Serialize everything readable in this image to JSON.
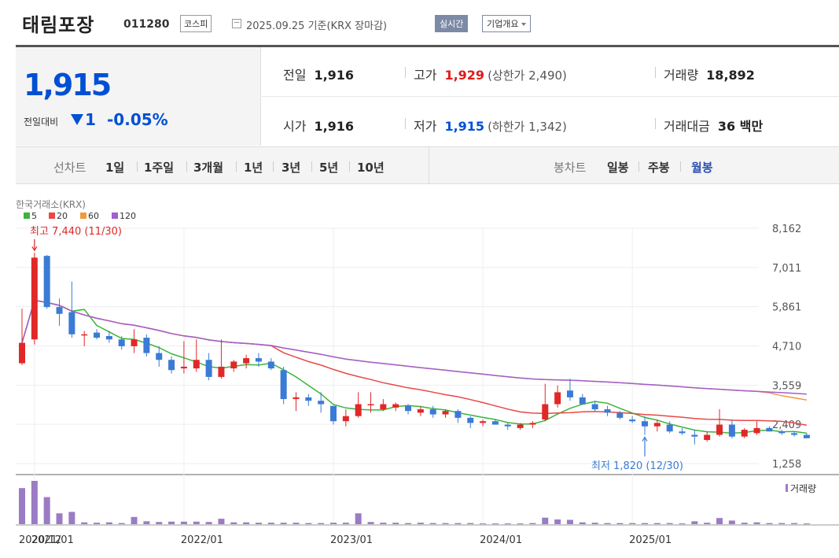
{
  "header": {
    "company_name": "태림포장",
    "stock_code": "011280",
    "market": "코스피",
    "as_of": "2025.09.25 기준(KRX 장마감)",
    "realtime_btn": "실시간",
    "overview_btn": "기업개요"
  },
  "price": {
    "current": "1,915",
    "change_label": "전일대비",
    "change_value": "1",
    "change_pct": "-0.05%",
    "direction": "down"
  },
  "stats": {
    "prev_close_label": "전일",
    "prev_close": "1,916",
    "open_label": "시가",
    "open": "1,916",
    "high_label": "고가",
    "high": "1,929",
    "upper_limit": "(상한가 2,490)",
    "low_label": "저가",
    "low": "1,915",
    "lower_limit": "(하한가 1,342)",
    "volume_label": "거래량",
    "volume": "18,892",
    "amount_label": "거래대금",
    "amount": "36 백만"
  },
  "tabs": {
    "line_chart_label": "선차트",
    "periods": [
      "1일",
      "1주일",
      "3개월",
      "1년",
      "3년",
      "5년",
      "10년"
    ],
    "candle_label": "봉차트",
    "candle_periods": [
      "일봉",
      "주봉",
      "월봉"
    ],
    "selected_candle": "월봉"
  },
  "chart_data": {
    "type": "candlestick",
    "source": "한국거래소(KRX)",
    "legend": [
      {
        "name": "5",
        "color": "#3cb43c"
      },
      {
        "name": "20",
        "color": "#e84848"
      },
      {
        "name": "60",
        "color": "#f29a3a"
      },
      {
        "name": "120",
        "color": "#a060d0"
      }
    ],
    "y_ticks": [
      "8,162",
      "7,011",
      "5,861",
      "4,710",
      "3,559",
      "2,409",
      "1,258"
    ],
    "y_tick_values": [
      8162,
      7011,
      5861,
      4710,
      3559,
      2409,
      1258
    ],
    "x_ticks": [
      "2020/12",
      "2021/01",
      "2022/01",
      "2023/01",
      "2024/01",
      "2025/01"
    ],
    "x_tick_index": [
      0,
      1,
      13,
      25,
      37,
      49
    ],
    "high_annotation": "최고 7,440 (11/30)",
    "high_index": 1,
    "low_annotation": "최저 1,820 (12/30)",
    "low_index": 50,
    "volume_label": "거래량",
    "colors": {
      "up": "#e02828",
      "down": "#3a7bd5",
      "volume": "#9b7cc4"
    },
    "candles": [
      {
        "o": 4200,
        "h": 5800,
        "l": 4150,
        "c": 4800,
        "v": 100
      },
      {
        "o": 4900,
        "h": 7440,
        "l": 4750,
        "c": 7300,
        "v": 120
      },
      {
        "o": 7350,
        "h": 7380,
        "l": 5800,
        "c": 5850,
        "v": 75
      },
      {
        "o": 5850,
        "h": 6100,
        "l": 5300,
        "c": 5650,
        "v": 30
      },
      {
        "o": 5700,
        "h": 6600,
        "l": 4950,
        "c": 5050,
        "v": 34
      },
      {
        "o": 5050,
        "h": 5150,
        "l": 4700,
        "c": 5050,
        "v": 5
      },
      {
        "o": 5100,
        "h": 5200,
        "l": 4900,
        "c": 4950,
        "v": 4
      },
      {
        "o": 5000,
        "h": 5150,
        "l": 4800,
        "c": 4900,
        "v": 5
      },
      {
        "o": 4900,
        "h": 5000,
        "l": 4600,
        "c": 4700,
        "v": 3
      },
      {
        "o": 4700,
        "h": 5200,
        "l": 4500,
        "c": 4900,
        "v": 20
      },
      {
        "o": 4950,
        "h": 5050,
        "l": 4400,
        "c": 4500,
        "v": 8
      },
      {
        "o": 4500,
        "h": 4700,
        "l": 4100,
        "c": 4300,
        "v": 6
      },
      {
        "o": 4300,
        "h": 4400,
        "l": 3900,
        "c": 4000,
        "v": 7
      },
      {
        "o": 4050,
        "h": 4850,
        "l": 3900,
        "c": 4100,
        "v": 7
      },
      {
        "o": 4050,
        "h": 4900,
        "l": 3950,
        "c": 4300,
        "v": 7
      },
      {
        "o": 4300,
        "h": 4500,
        "l": 3700,
        "c": 3800,
        "v": 6
      },
      {
        "o": 3800,
        "h": 4900,
        "l": 3750,
        "c": 4100,
        "v": 15
      },
      {
        "o": 4050,
        "h": 4300,
        "l": 3950,
        "c": 4250,
        "v": 5
      },
      {
        "o": 4200,
        "h": 4450,
        "l": 4050,
        "c": 4350,
        "v": 5
      },
      {
        "o": 4350,
        "h": 4500,
        "l": 4100,
        "c": 4250,
        "v": 4
      },
      {
        "o": 4250,
        "h": 4350,
        "l": 4000,
        "c": 4050,
        "v": 4
      },
      {
        "o": 4000,
        "h": 4100,
        "l": 3000,
        "c": 3150,
        "v": 4
      },
      {
        "o": 3150,
        "h": 3350,
        "l": 2800,
        "c": 3200,
        "v": 4
      },
      {
        "o": 3200,
        "h": 3300,
        "l": 2950,
        "c": 3100,
        "v": 3
      },
      {
        "o": 3100,
        "h": 3350,
        "l": 2750,
        "c": 3000,
        "v": 3
      },
      {
        "o": 2950,
        "h": 2950,
        "l": 2400,
        "c": 2500,
        "v": 4
      },
      {
        "o": 2500,
        "h": 2850,
        "l": 2350,
        "c": 2650,
        "v": 4
      },
      {
        "o": 2650,
        "h": 3350,
        "l": 2600,
        "c": 3000,
        "v": 30
      },
      {
        "o": 3000,
        "h": 3350,
        "l": 2750,
        "c": 3000,
        "v": 6
      },
      {
        "o": 2850,
        "h": 3150,
        "l": 2800,
        "c": 3000,
        "v": 4
      },
      {
        "o": 2900,
        "h": 3050,
        "l": 2800,
        "c": 3000,
        "v": 4
      },
      {
        "o": 2950,
        "h": 3000,
        "l": 2700,
        "c": 2800,
        "v": 3
      },
      {
        "o": 2750,
        "h": 2950,
        "l": 2650,
        "c": 2850,
        "v": 4
      },
      {
        "o": 2850,
        "h": 2950,
        "l": 2600,
        "c": 2700,
        "v": 3
      },
      {
        "o": 2700,
        "h": 2850,
        "l": 2600,
        "c": 2800,
        "v": 3
      },
      {
        "o": 2800,
        "h": 2850,
        "l": 2450,
        "c": 2600,
        "v": 3
      },
      {
        "o": 2600,
        "h": 2650,
        "l": 2300,
        "c": 2450,
        "v": 3
      },
      {
        "o": 2450,
        "h": 2550,
        "l": 2350,
        "c": 2500,
        "v": 2
      },
      {
        "o": 2500,
        "h": 2550,
        "l": 2400,
        "c": 2400,
        "v": 2
      },
      {
        "o": 2400,
        "h": 2450,
        "l": 2250,
        "c": 2350,
        "v": 2
      },
      {
        "o": 2300,
        "h": 2450,
        "l": 2250,
        "c": 2400,
        "v": 2
      },
      {
        "o": 2400,
        "h": 2500,
        "l": 2300,
        "c": 2450,
        "v": 3
      },
      {
        "o": 2550,
        "h": 3600,
        "l": 2500,
        "c": 3000,
        "v": 18
      },
      {
        "o": 3000,
        "h": 3550,
        "l": 2900,
        "c": 3350,
        "v": 13
      },
      {
        "o": 3400,
        "h": 3750,
        "l": 3100,
        "c": 3200,
        "v": 12
      },
      {
        "o": 3200,
        "h": 3300,
        "l": 3000,
        "c": 3000,
        "v": 5
      },
      {
        "o": 3000,
        "h": 3100,
        "l": 2800,
        "c": 2850,
        "v": 4
      },
      {
        "o": 2850,
        "h": 2950,
        "l": 2650,
        "c": 2750,
        "v": 3
      },
      {
        "o": 2750,
        "h": 2800,
        "l": 2550,
        "c": 2600,
        "v": 3
      },
      {
        "o": 2550,
        "h": 2650,
        "l": 2450,
        "c": 2500,
        "v": 3
      },
      {
        "o": 2500,
        "h": 2650,
        "l": 2100,
        "c": 2350,
        "v": 3
      },
      {
        "o": 2350,
        "h": 2550,
        "l": 2200,
        "c": 2450,
        "v": 3
      },
      {
        "o": 2400,
        "h": 2500,
        "l": 2150,
        "c": 2200,
        "v": 3
      },
      {
        "o": 2200,
        "h": 2300,
        "l": 2100,
        "c": 2150,
        "v": 2
      },
      {
        "o": 2100,
        "h": 2250,
        "l": 1820,
        "c": 2050,
        "v": 8
      },
      {
        "o": 1950,
        "h": 2200,
        "l": 1900,
        "c": 2100,
        "v": 4
      },
      {
        "o": 2100,
        "h": 2850,
        "l": 2050,
        "c": 2400,
        "v": 17
      },
      {
        "o": 2400,
        "h": 2550,
        "l": 2000,
        "c": 2050,
        "v": 10
      },
      {
        "o": 2050,
        "h": 2300,
        "l": 2000,
        "c": 2250,
        "v": 4
      },
      {
        "o": 2150,
        "h": 2500,
        "l": 2100,
        "c": 2300,
        "v": 5
      },
      {
        "o": 2300,
        "h": 2350,
        "l": 2200,
        "c": 2200,
        "v": 3
      },
      {
        "o": 2200,
        "h": 2250,
        "l": 2100,
        "c": 2150,
        "v": 3
      },
      {
        "o": 2150,
        "h": 2200,
        "l": 2050,
        "c": 2100,
        "v": 3
      },
      {
        "o": 2100,
        "h": 2150,
        "l": 2000,
        "c": 2000,
        "v": 2
      }
    ]
  }
}
